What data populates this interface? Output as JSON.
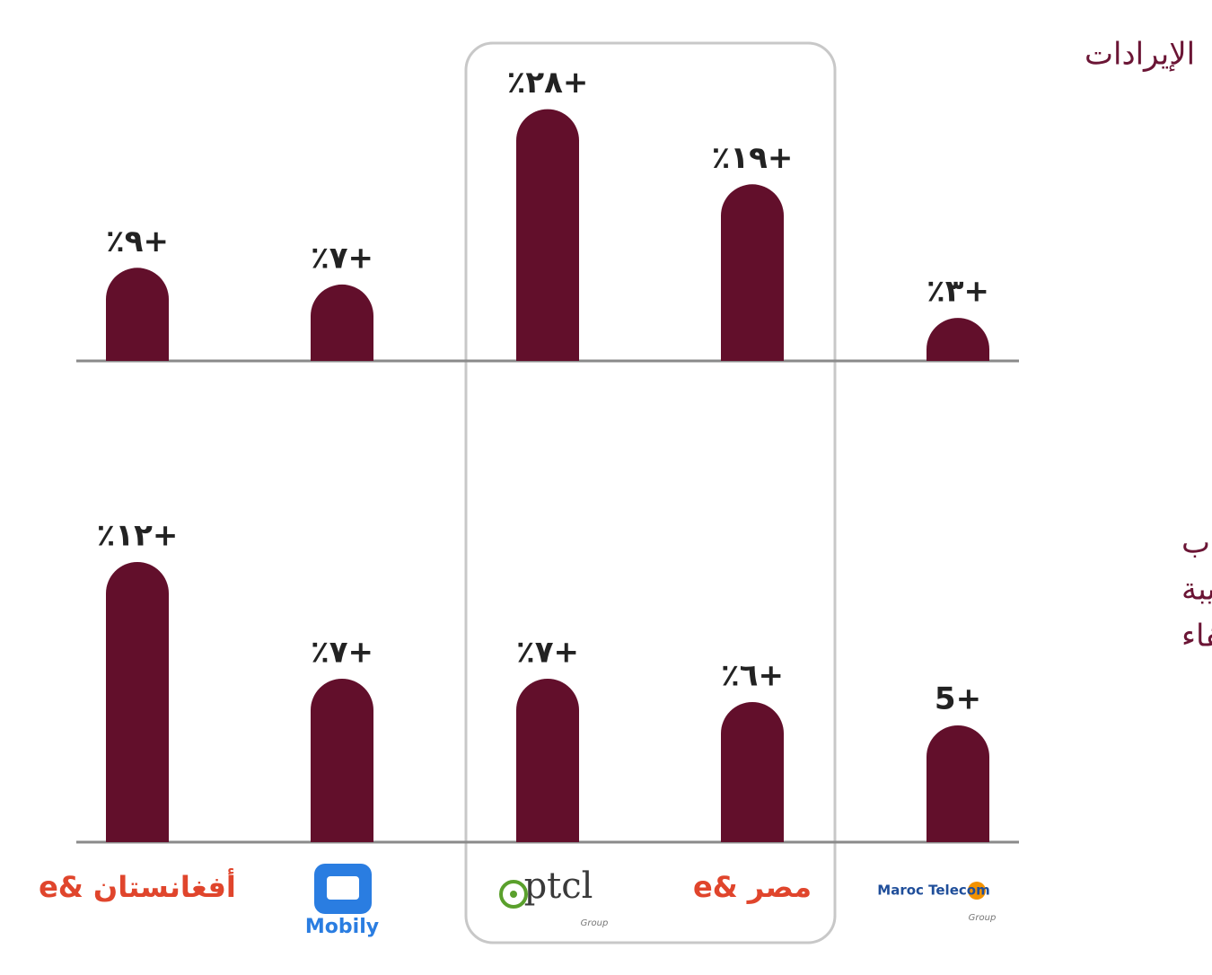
{
  "chart_data": [
    {
      "type": "bar",
      "title": "الإيرادات",
      "values": [
        9,
        7,
        28,
        19,
        3
      ],
      "value_labels": [
        "٪٩+",
        "٪٧+",
        "٪٢٨+",
        "٪١٩+",
        "٪٣+"
      ],
      "color": "#620f2b"
    },
    {
      "type": "bar",
      "title_lines": [
        "الأرباح قبل احتساب",
        "الفائدة والضريبة",
        "والاستهلاك والإطفاء"
      ],
      "categories": [
        "e& أفغانستان",
        "Mobily",
        "ptcl",
        "e& مصر",
        "Maroc Telecom"
      ],
      "category_sublabels": [
        null,
        null,
        "Group",
        null,
        "Group"
      ],
      "values": [
        12,
        7,
        7,
        6,
        5
      ],
      "value_labels": [
        "٪١٢+",
        "٪٧+",
        "٪٧+",
        "٪٦+",
        "5+"
      ],
      "color": "#620f2b"
    }
  ]
}
